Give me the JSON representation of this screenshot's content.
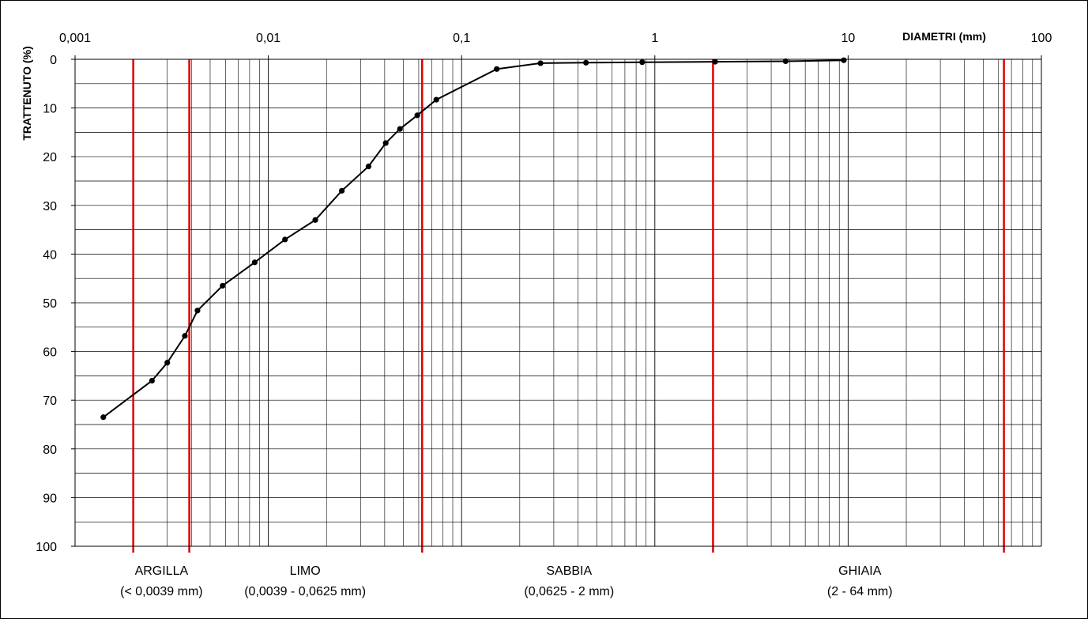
{
  "chart_data": {
    "type": "line",
    "x_scale": "log",
    "y_reversed": true,
    "xlim": [
      0.001,
      100
    ],
    "ylim": [
      0,
      100
    ],
    "x_major_ticks": [
      "0,001",
      "0,01",
      "0,1",
      "1",
      "10",
      "100"
    ],
    "y_ticks": [
      "0",
      "10",
      "20",
      "30",
      "40",
      "50",
      "60",
      "70",
      "80",
      "90",
      "100"
    ],
    "xlabel": "DIAMETRI (mm)",
    "ylabel": "TRATTENUTO (%)",
    "grid": true,
    "series": [
      {
        "x": [
          0.0014,
          0.0025,
          0.003,
          0.0037,
          0.0043,
          0.0058,
          0.0085,
          0.0122,
          0.0175,
          0.024,
          0.033,
          0.0405,
          0.048,
          0.059,
          0.074,
          0.152,
          0.256,
          0.44,
          0.86,
          2.05,
          4.75,
          9.5
        ],
        "y": [
          73.5,
          66,
          62.3,
          56.8,
          51.6,
          46.5,
          41.7,
          37,
          33,
          27,
          22,
          17.2,
          14.3,
          11.5,
          8.3,
          2,
          0.8,
          0.7,
          0.6,
          0.5,
          0.4,
          0.2
        ],
        "color": "#000000"
      }
    ],
    "boundaries": {
      "x": [
        0.002,
        0.0039,
        0.0625,
        2,
        64
      ],
      "color": "#e00000"
    },
    "classes": [
      {
        "name": "ARGILLA",
        "range": "(< 0,0039 mm)",
        "x_center": 0.0028
      },
      {
        "name": "LIMO",
        "range": "(0,0039 - 0,0625 mm)",
        "x_center": 0.0155
      },
      {
        "name": "SABBIA",
        "range": "(0,0625 - 2 mm)",
        "x_center": 0.36
      },
      {
        "name": "GHIAIA",
        "range": "(2 - 64 mm)",
        "x_center": 11.5
      }
    ]
  }
}
